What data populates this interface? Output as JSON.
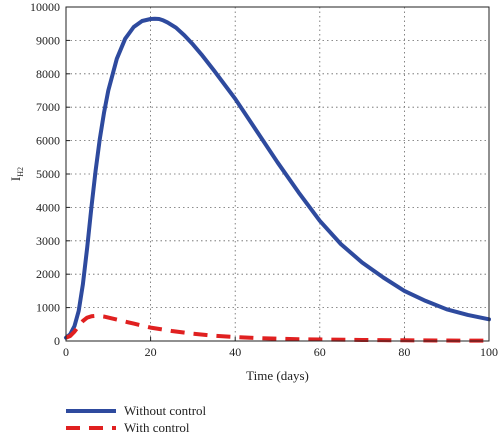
{
  "chart_data": {
    "type": "line",
    "title": "",
    "xlabel": "Time (days)",
    "ylabel": "I",
    "ylabel_sub": "H2",
    "xlim": [
      0,
      100
    ],
    "ylim": [
      0,
      10000
    ],
    "xticks": [
      0,
      20,
      40,
      60,
      80,
      100
    ],
    "yticks": [
      0,
      1000,
      2000,
      3000,
      4000,
      5000,
      6000,
      7000,
      8000,
      9000,
      10000
    ],
    "grid": true,
    "legend_position": "bottom-left",
    "series": [
      {
        "name": "Without control",
        "color": "#2e4a9e",
        "style": "solid",
        "x": [
          0,
          1,
          2,
          3,
          4,
          5,
          6,
          7,
          8,
          9,
          10,
          12,
          14,
          16,
          18,
          20,
          21,
          22,
          23,
          24,
          26,
          28,
          30,
          32,
          35,
          40,
          45,
          50,
          55,
          60,
          65,
          70,
          75,
          80,
          85,
          90,
          95,
          100
        ],
        "values": [
          100,
          200,
          450,
          900,
          1700,
          2800,
          4000,
          5100,
          6050,
          6850,
          7500,
          8450,
          9050,
          9400,
          9580,
          9640,
          9650,
          9640,
          9600,
          9540,
          9380,
          9150,
          8880,
          8580,
          8100,
          7250,
          6300,
          5350,
          4450,
          3600,
          2900,
          2350,
          1900,
          1500,
          1200,
          950,
          780,
          650
        ]
      },
      {
        "name": "With control",
        "color": "#e02020",
        "style": "dashed",
        "x": [
          0,
          1,
          2,
          3,
          4,
          5,
          6,
          7,
          8,
          9,
          10,
          12,
          14,
          16,
          18,
          20,
          25,
          30,
          35,
          40,
          45,
          50,
          55,
          60,
          70,
          80,
          90,
          100
        ],
        "values": [
          100,
          150,
          280,
          450,
          600,
          700,
          740,
          750,
          745,
          730,
          700,
          640,
          580,
          520,
          460,
          400,
          300,
          220,
          160,
          120,
          90,
          70,
          55,
          45,
          30,
          20,
          15,
          10
        ]
      }
    ]
  }
}
